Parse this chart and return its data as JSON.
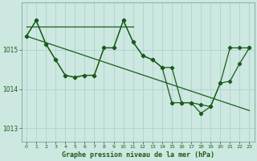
{
  "xlabel": "Graphe pression niveau de la mer (hPa)",
  "ylim": [
    1012.65,
    1016.2
  ],
  "yticks": [
    1013,
    1014,
    1015
  ],
  "xlim": [
    -0.5,
    23.5
  ],
  "xticks": [
    0,
    1,
    2,
    3,
    4,
    5,
    6,
    7,
    8,
    9,
    10,
    11,
    12,
    13,
    14,
    15,
    16,
    17,
    18,
    19,
    20,
    21,
    22,
    23
  ],
  "bg_color": "#cce8e0",
  "plot_bg": "#cce8e0",
  "line_color": "#1a5c1a",
  "grid_color": "#aacccc",
  "series1": [
    1015.35,
    1015.75,
    1015.15,
    1014.75,
    1014.35,
    1014.3,
    1014.35,
    1014.35,
    1015.05,
    1015.05,
    1015.75,
    1015.2,
    1014.85,
    1014.75,
    1014.55,
    1014.55,
    1013.65,
    1013.65,
    1013.6,
    1013.55,
    1014.15,
    1015.05,
    1015.05,
    1015.05
  ],
  "series2": [
    1015.35,
    1015.75,
    1015.15,
    1014.75,
    1014.35,
    1014.3,
    1014.35,
    1014.35,
    1015.05,
    1015.05,
    1015.75,
    1015.2,
    1014.85,
    1014.75,
    1014.55,
    1013.65,
    1013.65,
    1013.65,
    1013.38,
    1013.55,
    1014.15,
    1014.2,
    1014.65,
    1015.05
  ],
  "trend1_x": [
    0,
    11
  ],
  "trend1_y": [
    1015.6,
    1015.6
  ],
  "trend2_x": [
    0,
    23
  ],
  "trend2_y": [
    1015.35,
    1013.45
  ],
  "figwidth": 3.2,
  "figheight": 2.0,
  "dpi": 100
}
